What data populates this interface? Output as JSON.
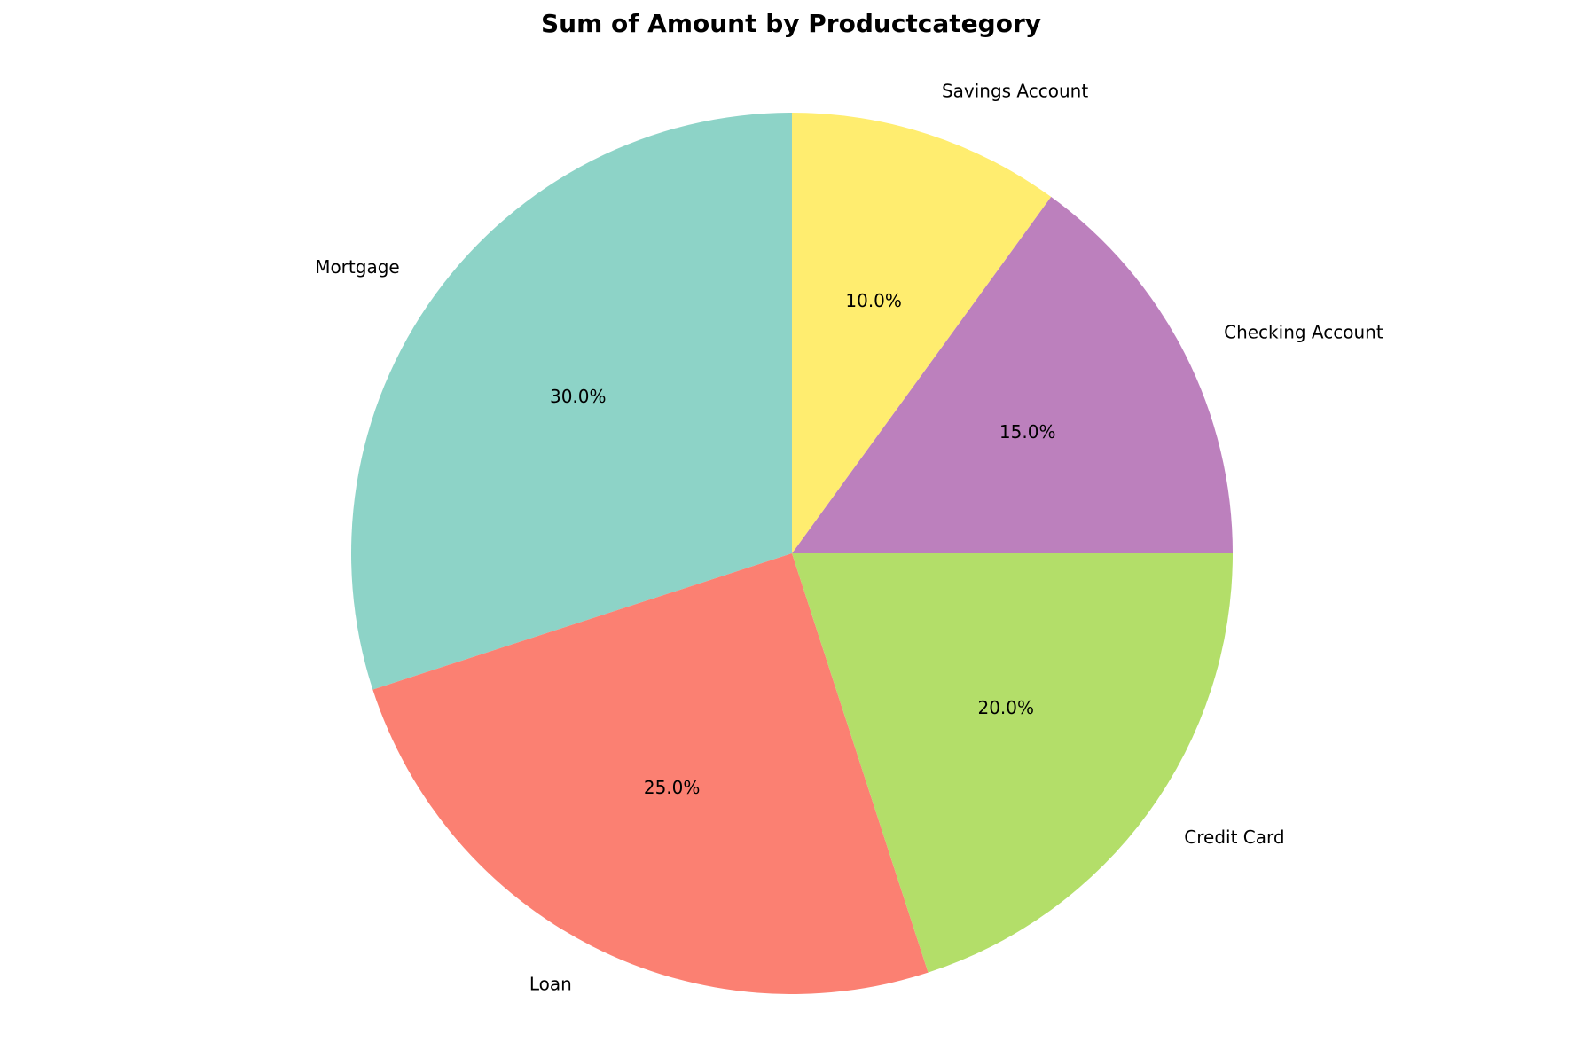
{
  "chart_data": {
    "type": "pie",
    "title": "Sum of Amount by Productcategory",
    "start_angle_deg": 90,
    "direction": "counterclockwise",
    "slices": [
      {
        "label": "Mortgage",
        "value": 30.0,
        "pct_text": "30.0%",
        "color": "#8dd3c7"
      },
      {
        "label": "Loan",
        "value": 25.0,
        "pct_text": "25.0%",
        "color": "#fb8072"
      },
      {
        "label": "Credit Card",
        "value": 20.0,
        "pct_text": "20.0%",
        "color": "#b3de69"
      },
      {
        "label": "Checking Account",
        "value": 15.0,
        "pct_text": "15.0%",
        "color": "#bc80bd"
      },
      {
        "label": "Savings Account",
        "value": 10.0,
        "pct_text": "10.0%",
        "color": "#ffed6f"
      }
    ]
  }
}
